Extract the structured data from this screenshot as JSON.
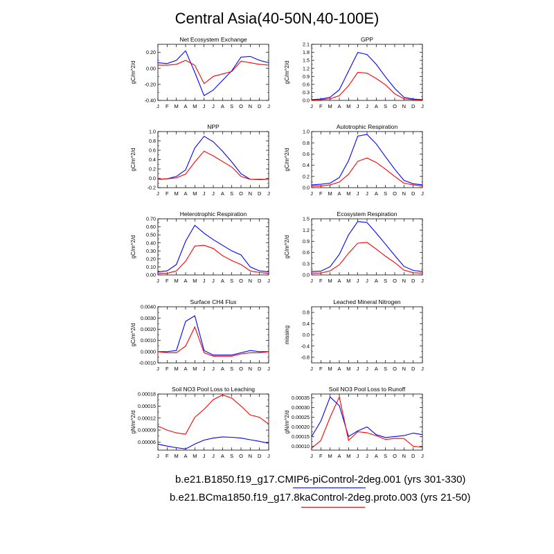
{
  "title": "Central Asia(40-50N,40-100E)",
  "legend": [
    {
      "label": "b.e21.B1850.f19_g17.CMIP6-piControl-2deg.001 (yrs 301-330)",
      "color": "#0000ff"
    },
    {
      "label": "b.e21.BCma1850.f19_g17.8kaControl-2deg.proto.003 (yrs 21-50)",
      "color": "#ff0000"
    }
  ],
  "chart_data": [
    {
      "type": "line",
      "title": "Net Ecosystem Exchange",
      "ylabel": "gC/m^2/d",
      "categories": [
        "J",
        "F",
        "M",
        "A",
        "M",
        "J",
        "J",
        "A",
        "S",
        "O",
        "N",
        "D",
        "J"
      ],
      "ylim": [
        -0.4,
        0.3
      ],
      "yticks": [
        "0.20",
        "0.00",
        "-0.20",
        "-0.40"
      ],
      "ytickvals": [
        0.2,
        0.0,
        -0.2,
        -0.4
      ],
      "series": [
        {
          "values": [
            0.07,
            0.06,
            0.1,
            0.22,
            -0.05,
            -0.34,
            -0.27,
            -0.15,
            -0.03,
            0.14,
            0.15,
            0.1,
            0.07
          ]
        },
        {
          "values": [
            0.04,
            0.04,
            0.05,
            0.1,
            0.04,
            -0.19,
            -0.1,
            -0.07,
            -0.04,
            0.09,
            0.07,
            0.05,
            0.04
          ]
        }
      ]
    },
    {
      "type": "line",
      "title": "GPP",
      "ylabel": "gC/m^2/d",
      "categories": [
        "J",
        "F",
        "M",
        "A",
        "M",
        "J",
        "J",
        "A",
        "S",
        "O",
        "N",
        "D",
        "J"
      ],
      "ylim": [
        0,
        2.1
      ],
      "yticks": [
        "2.1",
        "1.8",
        "1.5",
        "1.2",
        "0.9",
        "0.6",
        "0.3",
        "0.0"
      ],
      "ytickvals": [
        2.1,
        1.8,
        1.5,
        1.2,
        0.9,
        0.6,
        0.3,
        0.0
      ],
      "series": [
        {
          "values": [
            0.03,
            0.05,
            0.12,
            0.4,
            1.1,
            1.8,
            1.72,
            1.35,
            0.88,
            0.45,
            0.12,
            0.05,
            0.03
          ]
        },
        {
          "values": [
            0.02,
            0.03,
            0.06,
            0.18,
            0.55,
            1.05,
            1.02,
            0.82,
            0.58,
            0.25,
            0.06,
            0.03,
            0.02
          ]
        }
      ]
    },
    {
      "type": "line",
      "title": "NPP",
      "ylabel": "gC/m^2/d",
      "categories": [
        "J",
        "F",
        "M",
        "A",
        "M",
        "J",
        "J",
        "A",
        "S",
        "O",
        "N",
        "D",
        "J"
      ],
      "ylim": [
        -0.2,
        1.0
      ],
      "yticks": [
        "1.0",
        "0.8",
        "0.6",
        "0.4",
        "0.2",
        "0.0",
        "-0.2"
      ],
      "ytickvals": [
        1.0,
        0.8,
        0.6,
        0.4,
        0.2,
        0.0,
        -0.2
      ],
      "series": [
        {
          "values": [
            -0.02,
            -0.01,
            0.04,
            0.18,
            0.65,
            0.9,
            0.78,
            0.58,
            0.35,
            0.1,
            -0.02,
            -0.03,
            -0.02
          ]
        },
        {
          "values": [
            -0.02,
            -0.01,
            0.01,
            0.09,
            0.35,
            0.58,
            0.48,
            0.36,
            0.24,
            0.04,
            -0.02,
            -0.02,
            -0.02
          ]
        }
      ]
    },
    {
      "type": "line",
      "title": "Autotrophic Respiration",
      "ylabel": "gC/m^2/d",
      "categories": [
        "J",
        "F",
        "M",
        "A",
        "M",
        "J",
        "J",
        "A",
        "S",
        "O",
        "N",
        "D",
        "J"
      ],
      "ylim": [
        0,
        1.0
      ],
      "yticks": [
        "1.0",
        "0.8",
        "0.6",
        "0.4",
        "0.2",
        "0.0"
      ],
      "ytickvals": [
        1.0,
        0.8,
        0.6,
        0.4,
        0.2,
        0.0
      ],
      "series": [
        {
          "values": [
            0.05,
            0.06,
            0.08,
            0.18,
            0.48,
            0.92,
            0.95,
            0.78,
            0.55,
            0.33,
            0.13,
            0.07,
            0.05
          ]
        },
        {
          "values": [
            0.03,
            0.03,
            0.05,
            0.1,
            0.24,
            0.47,
            0.53,
            0.45,
            0.33,
            0.2,
            0.08,
            0.05,
            0.03
          ]
        }
      ]
    },
    {
      "type": "line",
      "title": "Heterotrophic Respiration",
      "ylabel": "gC/m^2/d",
      "categories": [
        "J",
        "F",
        "M",
        "A",
        "M",
        "J",
        "J",
        "A",
        "S",
        "O",
        "N",
        "D",
        "J"
      ],
      "ylim": [
        0,
        0.7
      ],
      "yticks": [
        "0.70",
        "0.60",
        "0.50",
        "0.40",
        "0.30",
        "0.20",
        "0.10",
        "0.00"
      ],
      "ytickvals": [
        0.7,
        0.6,
        0.5,
        0.4,
        0.3,
        0.2,
        0.1,
        0.0
      ],
      "series": [
        {
          "values": [
            0.04,
            0.05,
            0.13,
            0.42,
            0.62,
            0.52,
            0.44,
            0.37,
            0.3,
            0.25,
            0.1,
            0.05,
            0.04
          ]
        },
        {
          "values": [
            0.02,
            0.02,
            0.05,
            0.17,
            0.36,
            0.37,
            0.33,
            0.24,
            0.18,
            0.13,
            0.05,
            0.03,
            0.02
          ]
        }
      ]
    },
    {
      "type": "line",
      "title": "Ecosystem Respiration",
      "ylabel": "gC/m^2/d",
      "categories": [
        "J",
        "F",
        "M",
        "A",
        "M",
        "J",
        "J",
        "A",
        "S",
        "O",
        "N",
        "D",
        "J"
      ],
      "ylim": [
        0,
        1.5
      ],
      "yticks": [
        "1.5",
        "1.2",
        "0.9",
        "0.6",
        "0.3",
        "0.0"
      ],
      "ytickvals": [
        1.5,
        1.2,
        0.9,
        0.6,
        0.3,
        0.0
      ],
      "series": [
        {
          "values": [
            0.09,
            0.1,
            0.22,
            0.55,
            1.07,
            1.43,
            1.4,
            1.12,
            0.82,
            0.52,
            0.23,
            0.12,
            0.09
          ]
        },
        {
          "values": [
            0.05,
            0.05,
            0.11,
            0.27,
            0.58,
            0.85,
            0.87,
            0.69,
            0.5,
            0.33,
            0.13,
            0.06,
            0.05
          ]
        }
      ]
    },
    {
      "type": "line",
      "title": "Surface CH4 Flux",
      "ylabel": "gC/m^2/d",
      "categories": [
        "J",
        "F",
        "M",
        "A",
        "M",
        "J",
        "J",
        "A",
        "S",
        "O",
        "N",
        "D",
        "J"
      ],
      "ylim": [
        -0.001,
        0.004
      ],
      "yticks": [
        "0.0040",
        "0.0030",
        "0.0020",
        "0.0010",
        "0.0000",
        "-0.0010"
      ],
      "ytickvals": [
        0.004,
        0.003,
        0.002,
        0.001,
        0.0,
        -0.001
      ],
      "series": [
        {
          "values": [
            0.0,
            0.0,
            0.0001,
            0.0027,
            0.0032,
            0.0001,
            -0.0003,
            -0.0003,
            -0.0003,
            -0.0001,
            0.0001,
            0.0,
            0.0
          ]
        },
        {
          "values": [
            0.0,
            -0.0001,
            -0.0001,
            0.0005,
            0.0022,
            -0.0001,
            -0.0004,
            -0.0004,
            -0.0004,
            -0.0002,
            -0.0001,
            -0.0001,
            0.0
          ]
        }
      ]
    },
    {
      "type": "line",
      "title": "Leached Mineral Nitrogen",
      "ylabel": "missing",
      "categories": [
        "J",
        "F",
        "M",
        "A",
        "M",
        "J",
        "J",
        "A",
        "S",
        "O",
        "N",
        "D",
        "J"
      ],
      "ylim": [
        -1.0,
        1.0
      ],
      "yticks": [
        "0.8",
        "0.4",
        "0.0",
        "-0.4",
        "-0.8"
      ],
      "ytickvals": [
        0.8,
        0.4,
        0.0,
        -0.4,
        -0.8
      ],
      "series": []
    },
    {
      "type": "line",
      "title": "Soil NO3 Pool Loss to Leaching",
      "ylabel": "gN/m^2/d",
      "categories": [
        "J",
        "F",
        "M",
        "A",
        "M",
        "J",
        "J",
        "A",
        "S",
        "O",
        "N",
        "D",
        "J"
      ],
      "ylim": [
        4e-05,
        0.00018
      ],
      "yticks": [
        "0.00018",
        "0.00015",
        "0.00012",
        "0.00009",
        "0.00006"
      ],
      "ytickvals": [
        0.00018,
        0.00015,
        0.00012,
        9e-05,
        6e-05
      ],
      "series": [
        {
          "values": [
            5.5e-05,
            5e-05,
            4.6e-05,
            4.3e-05,
            5.5e-05,
            6.5e-05,
            7e-05,
            7.3e-05,
            7.2e-05,
            7e-05,
            6.6e-05,
            6.2e-05,
            5.7e-05
          ]
        },
        {
          "values": [
            0.0001,
            9e-05,
            8.3e-05,
            8e-05,
            0.000122,
            0.000142,
            0.000166,
            0.000178,
            0.00017,
            0.00015,
            0.000128,
            0.000122,
            0.000105
          ]
        }
      ]
    },
    {
      "type": "line",
      "title": "Soil NO3 Pool Loss to Runoff",
      "ylabel": "gN/m^2/d",
      "categories": [
        "J",
        "F",
        "M",
        "A",
        "M",
        "J",
        "J",
        "A",
        "S",
        "O",
        "N",
        "D",
        "J"
      ],
      "ylim": [
        8e-05,
        0.00037
      ],
      "yticks": [
        "0.00035",
        "0.00030",
        "0.00025",
        "0.00020",
        "0.00015",
        "0.00010"
      ],
      "ytickvals": [
        0.00035,
        0.0003,
        0.00025,
        0.0002,
        0.00015,
        0.0001
      ],
      "series": [
        {
          "values": [
            0.00015,
            0.00023,
            0.000355,
            0.00031,
            0.00015,
            0.00018,
            0.0002,
            0.00016,
            0.000145,
            0.00015,
            0.000155,
            0.000168,
            0.00016
          ]
        },
        {
          "values": [
            9e-05,
            0.00013,
            0.00025,
            0.000355,
            0.00013,
            0.000175,
            0.00017,
            0.000155,
            0.000135,
            0.00014,
            0.00014,
            0.0001,
            9.5e-05
          ]
        }
      ]
    }
  ]
}
